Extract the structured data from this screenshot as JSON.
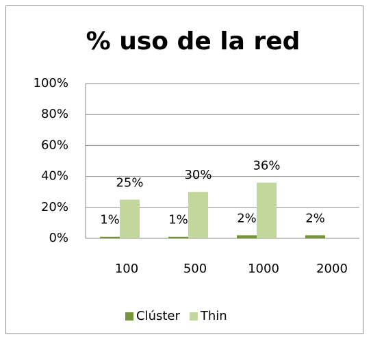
{
  "chart_data": {
    "type": "bar",
    "title": "% uso de la red",
    "categories": [
      "100",
      "500",
      "1000",
      "2000"
    ],
    "series": [
      {
        "name": "Clúster",
        "color": "#77933c",
        "values": [
          1,
          1,
          2,
          2
        ],
        "value_labels": [
          "1%",
          "1%",
          "2%",
          "2%"
        ]
      },
      {
        "name": "Thin",
        "color": "#c3d69b",
        "values": [
          25,
          30,
          36,
          null
        ],
        "value_labels": [
          "25%",
          "30%",
          "36%",
          null
        ]
      }
    ],
    "ylim": [
      0,
      100
    ],
    "yticks": [
      {
        "value": 0,
        "label": "0%"
      },
      {
        "value": 20,
        "label": "20%"
      },
      {
        "value": 40,
        "label": "40%"
      },
      {
        "value": 60,
        "label": "60%"
      },
      {
        "value": 80,
        "label": "80%"
      },
      {
        "value": 100,
        "label": "100%"
      }
    ],
    "grid": true,
    "legend": "bottom"
  }
}
